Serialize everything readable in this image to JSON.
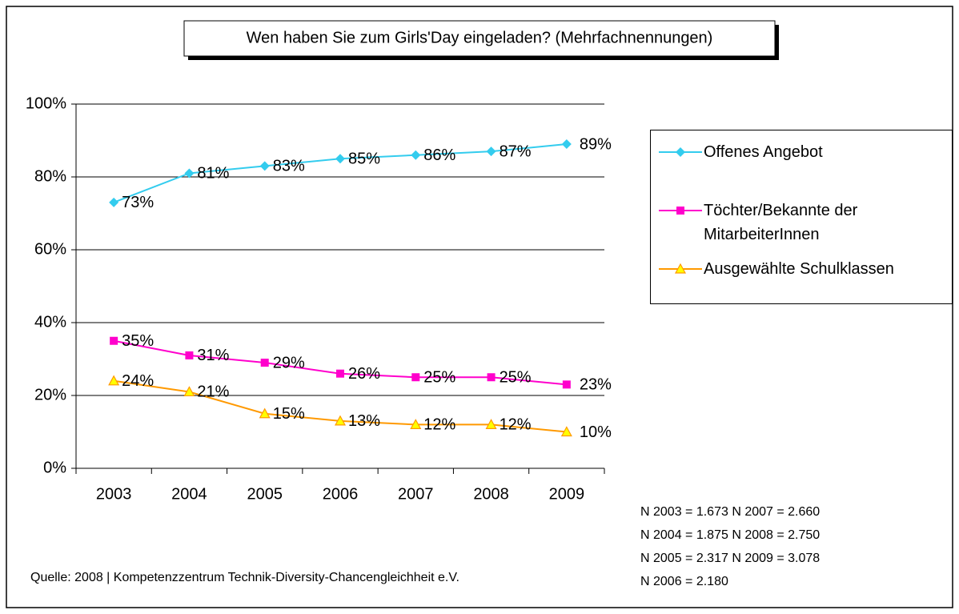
{
  "chart_data": {
    "type": "line",
    "title": "Wen haben Sie zum Girls'Day eingeladen? (Mehrfachnennungen)",
    "categories": [
      "2003",
      "2004",
      "2005",
      "2006",
      "2007",
      "2008",
      "2009"
    ],
    "series": [
      {
        "name": "Offenes Angebot",
        "color": "#33ccee",
        "marker": "diamond",
        "values": [
          73,
          81,
          83,
          85,
          86,
          87,
          89
        ],
        "value_labels": [
          "73%",
          "81%",
          "83%",
          "85%",
          "86%",
          "87%",
          "89%"
        ]
      },
      {
        "name": "Töchter/Bekannte der MitarbeiterInnen",
        "color": "#ff00cc",
        "marker": "square",
        "values": [
          35,
          31,
          29,
          26,
          25,
          25,
          23
        ],
        "value_labels": [
          "35%",
          "31%",
          "29%",
          "26%",
          "25%",
          "25%",
          "23%"
        ]
      },
      {
        "name": "Ausgewählte Schulklassen",
        "color": "#ff9900",
        "marker": "triangle",
        "values": [
          24,
          21,
          15,
          13,
          12,
          12,
          10
        ],
        "value_labels": [
          "24%",
          "21%",
          "15%",
          "13%",
          "12%",
          "12%",
          "10%"
        ]
      }
    ],
    "ylim": [
      0,
      100
    ],
    "yticks": [
      {
        "value": 0,
        "label": "0%"
      },
      {
        "value": 20,
        "label": "20%"
      },
      {
        "value": 40,
        "label": "40%"
      },
      {
        "value": 60,
        "label": "60%"
      },
      {
        "value": 80,
        "label": "80%"
      },
      {
        "value": 100,
        "label": "100%"
      }
    ],
    "grid": true,
    "legend": "right",
    "source": "Quelle: 2008 | Kompetenzzentrum Technik-Diversity-Chancengleichheit e.V.",
    "notes": [
      "N 2003 = 1.673  N 2007 = 2.660",
      "N 2004 = 1.875  N 2008 = 2.750",
      "N 2005 = 2.317  N 2009 = 3.078",
      "N 2006 = 2.180"
    ]
  }
}
